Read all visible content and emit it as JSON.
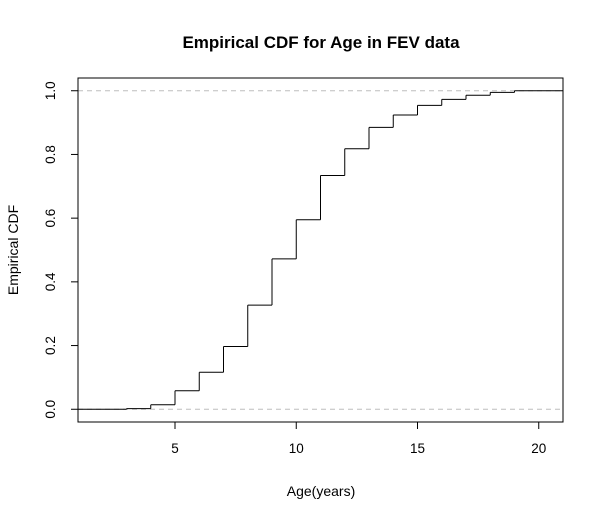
{
  "chart_data": {
    "type": "step",
    "title": "Empirical CDF for Age in FEV data",
    "xlabel": "Age(years)",
    "ylabel": "Empirical CDF",
    "xlim": [
      1,
      21
    ],
    "ylim": [
      -0.04,
      1.04
    ],
    "x_ticks": [
      5,
      10,
      15,
      20
    ],
    "y_ticks": [
      0.0,
      0.2,
      0.4,
      0.6,
      0.8,
      1.0
    ],
    "x_tick_labels": [
      "5",
      "10",
      "15",
      "20"
    ],
    "y_tick_labels": [
      "0.0",
      "0.2",
      "0.4",
      "0.6",
      "0.8",
      "1.0"
    ],
    "reference_lines_y": [
      0,
      1
    ],
    "reference_line_color": "#bebebe",
    "line_color": "#000000",
    "series": [
      {
        "x": [
          3,
          4,
          5,
          6,
          7,
          8,
          9,
          10,
          11,
          12,
          13,
          14,
          15,
          16,
          17,
          18,
          19
        ],
        "y": [
          0.002,
          0.014,
          0.058,
          0.116,
          0.197,
          0.327,
          0.472,
          0.595,
          0.734,
          0.818,
          0.885,
          0.924,
          0.954,
          0.973,
          0.986,
          0.995,
          1.0
        ]
      }
    ]
  }
}
